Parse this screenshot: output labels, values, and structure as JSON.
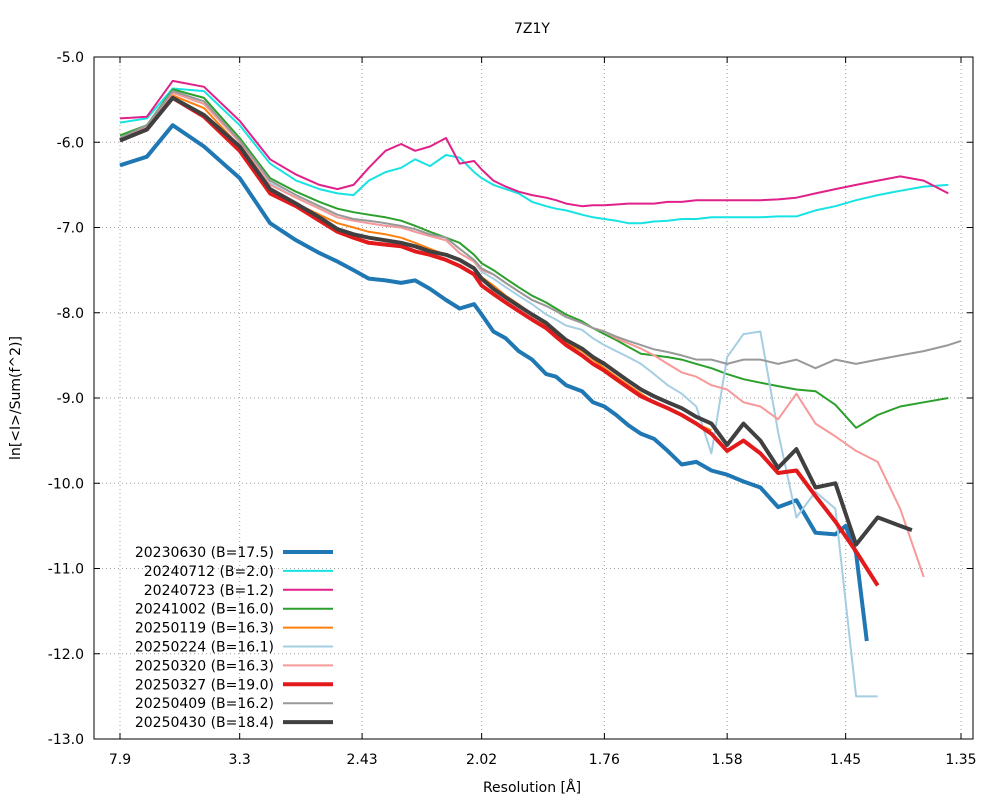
{
  "chart_data": {
    "type": "line",
    "title": "7Z1Y",
    "xlabel": "Resolution [Å]",
    "ylabel": "ln[<I>/Sum(f^2)]",
    "x_scale": "1/d^2",
    "xlim": [
      7.9,
      1.35
    ],
    "ylim": [
      -13.0,
      -5.0
    ],
    "grid": true,
    "legend_position": "bottom-left",
    "x_ticks": [
      {
        "value": 7.9,
        "label": "7.9"
      },
      {
        "value": 3.3,
        "label": "3.3"
      },
      {
        "value": 2.43,
        "label": "2.43"
      },
      {
        "value": 2.02,
        "label": "2.02"
      },
      {
        "value": 1.76,
        "label": "1.76"
      },
      {
        "value": 1.58,
        "label": "1.58"
      },
      {
        "value": 1.45,
        "label": "1.45"
      },
      {
        "value": 1.35,
        "label": "1.35"
      }
    ],
    "y_ticks": [
      {
        "value": -5.0,
        "label": "-5.0"
      },
      {
        "value": -6.0,
        "label": "-6.0"
      },
      {
        "value": -7.0,
        "label": "-7.0"
      },
      {
        "value": -8.0,
        "label": "-8.0"
      },
      {
        "value": -9.0,
        "label": "-9.0"
      },
      {
        "value": -10.0,
        "label": "-10.0"
      },
      {
        "value": -11.0,
        "label": "-11.0"
      },
      {
        "value": -12.0,
        "label": "-12.0"
      },
      {
        "value": -13.0,
        "label": "-13.0"
      }
    ],
    "series": [
      {
        "name": "20230630 (B=17.5)",
        "color": "#1f77b4",
        "width": 4,
        "x": [
          7.9,
          5.5,
          4.5,
          3.8,
          3.3,
          3.0,
          2.8,
          2.65,
          2.55,
          2.47,
          2.4,
          2.33,
          2.27,
          2.22,
          2.17,
          2.12,
          2.08,
          2.04,
          2.02,
          1.99,
          1.96,
          1.93,
          1.9,
          1.87,
          1.85,
          1.83,
          1.8,
          1.78,
          1.76,
          1.74,
          1.72,
          1.7,
          1.68,
          1.66,
          1.64,
          1.62,
          1.6,
          1.58,
          1.56,
          1.54,
          1.52,
          1.5,
          1.48,
          1.46,
          1.45,
          1.44,
          1.43
        ],
        "y": [
          -6.27,
          -6.17,
          -5.8,
          -6.05,
          -6.42,
          -6.95,
          -7.15,
          -7.3,
          -7.4,
          -7.5,
          -7.6,
          -7.62,
          -7.65,
          -7.62,
          -7.72,
          -7.85,
          -7.95,
          -7.9,
          -8.02,
          -8.22,
          -8.3,
          -8.45,
          -8.55,
          -8.72,
          -8.75,
          -8.85,
          -8.92,
          -9.05,
          -9.1,
          -9.2,
          -9.32,
          -9.42,
          -9.48,
          -9.62,
          -9.78,
          -9.75,
          -9.85,
          -9.9,
          -9.98,
          -10.05,
          -10.28,
          -10.2,
          -10.58,
          -10.6,
          -10.5,
          -10.82,
          -11.85
        ]
      },
      {
        "name": "20240712 (B=2.0)",
        "color": "#17e3e3",
        "width": 2,
        "x": [
          7.9,
          5.5,
          4.5,
          3.8,
          3.3,
          3.0,
          2.8,
          2.65,
          2.55,
          2.47,
          2.4,
          2.33,
          2.27,
          2.22,
          2.17,
          2.12,
          2.08,
          2.04,
          2.02,
          1.99,
          1.96,
          1.93,
          1.9,
          1.87,
          1.85,
          1.83,
          1.8,
          1.78,
          1.76,
          1.74,
          1.72,
          1.7,
          1.68,
          1.66,
          1.64,
          1.62,
          1.6,
          1.58,
          1.56,
          1.54,
          1.52,
          1.5,
          1.48,
          1.46,
          1.44,
          1.42,
          1.4,
          1.38,
          1.36
        ],
        "y": [
          -5.77,
          -5.72,
          -5.37,
          -5.4,
          -5.8,
          -6.25,
          -6.45,
          -6.55,
          -6.6,
          -6.62,
          -6.45,
          -6.35,
          -6.3,
          -6.2,
          -6.28,
          -6.15,
          -6.18,
          -6.35,
          -6.42,
          -6.5,
          -6.55,
          -6.6,
          -6.7,
          -6.75,
          -6.78,
          -6.8,
          -6.85,
          -6.88,
          -6.9,
          -6.92,
          -6.95,
          -6.95,
          -6.93,
          -6.92,
          -6.9,
          -6.9,
          -6.88,
          -6.88,
          -6.88,
          -6.88,
          -6.87,
          -6.87,
          -6.8,
          -6.75,
          -6.68,
          -6.62,
          -6.57,
          -6.52,
          -6.5
        ]
      },
      {
        "name": "20240723 (B=1.2)",
        "color": "#e0218a",
        "width": 2,
        "x": [
          7.9,
          5.5,
          4.5,
          3.8,
          3.3,
          3.0,
          2.8,
          2.65,
          2.55,
          2.47,
          2.4,
          2.33,
          2.27,
          2.22,
          2.17,
          2.12,
          2.08,
          2.04,
          2.02,
          1.99,
          1.96,
          1.93,
          1.9,
          1.87,
          1.85,
          1.83,
          1.8,
          1.78,
          1.76,
          1.74,
          1.72,
          1.7,
          1.68,
          1.66,
          1.64,
          1.62,
          1.6,
          1.58,
          1.56,
          1.54,
          1.52,
          1.5,
          1.48,
          1.46,
          1.44,
          1.42,
          1.4,
          1.38,
          1.36
        ],
        "y": [
          -5.72,
          -5.7,
          -5.28,
          -5.35,
          -5.75,
          -6.2,
          -6.38,
          -6.5,
          -6.55,
          -6.5,
          -6.3,
          -6.1,
          -6.02,
          -6.1,
          -6.05,
          -5.95,
          -6.25,
          -6.22,
          -6.32,
          -6.45,
          -6.52,
          -6.58,
          -6.62,
          -6.65,
          -6.68,
          -6.72,
          -6.75,
          -6.74,
          -6.74,
          -6.73,
          -6.72,
          -6.72,
          -6.72,
          -6.7,
          -6.7,
          -6.68,
          -6.68,
          -6.68,
          -6.68,
          -6.68,
          -6.67,
          -6.65,
          -6.6,
          -6.55,
          -6.5,
          -6.45,
          -6.4,
          -6.45,
          -6.6
        ]
      },
      {
        "name": "20241002 (B=16.0)",
        "color": "#2ca02c",
        "width": 2,
        "x": [
          7.9,
          5.5,
          4.5,
          3.8,
          3.3,
          3.0,
          2.8,
          2.65,
          2.55,
          2.47,
          2.4,
          2.33,
          2.27,
          2.22,
          2.17,
          2.12,
          2.08,
          2.04,
          2.02,
          1.99,
          1.96,
          1.93,
          1.9,
          1.87,
          1.85,
          1.83,
          1.8,
          1.78,
          1.76,
          1.74,
          1.72,
          1.7,
          1.68,
          1.66,
          1.64,
          1.62,
          1.6,
          1.58,
          1.56,
          1.54,
          1.52,
          1.5,
          1.48,
          1.46,
          1.44,
          1.42,
          1.4,
          1.38,
          1.36
        ],
        "y": [
          -5.92,
          -5.8,
          -5.38,
          -5.48,
          -5.95,
          -6.42,
          -6.58,
          -6.7,
          -6.78,
          -6.82,
          -6.85,
          -6.88,
          -6.92,
          -6.98,
          -7.05,
          -7.12,
          -7.18,
          -7.32,
          -7.42,
          -7.5,
          -7.6,
          -7.7,
          -7.8,
          -7.88,
          -7.95,
          -8.02,
          -8.1,
          -8.18,
          -8.25,
          -8.32,
          -8.4,
          -8.48,
          -8.5,
          -8.52,
          -8.55,
          -8.6,
          -8.65,
          -8.72,
          -8.78,
          -8.82,
          -8.86,
          -8.9,
          -8.92,
          -9.08,
          -9.35,
          -9.2,
          -9.1,
          -9.05,
          -9.0
        ]
      },
      {
        "name": "20250119 (B=16.3)",
        "color": "#ff7f0e",
        "width": 2,
        "x": [
          7.9,
          5.5,
          4.5,
          3.8,
          3.3,
          3.0,
          2.8,
          2.65,
          2.55,
          2.47,
          2.4,
          2.33,
          2.27,
          2.22,
          2.17,
          2.12,
          2.08,
          2.04,
          2.02,
          1.99,
          1.96,
          1.93,
          1.9,
          1.87,
          1.85,
          1.83,
          1.8,
          1.78,
          1.76,
          1.74,
          1.72,
          1.7,
          1.68,
          1.66,
          1.64,
          1.62,
          1.6
        ],
        "y": [
          -5.95,
          -5.85,
          -5.45,
          -5.6,
          -6.05,
          -6.55,
          -6.72,
          -6.85,
          -6.95,
          -7.0,
          -7.05,
          -7.08,
          -7.12,
          -7.18,
          -7.25,
          -7.32,
          -7.38,
          -7.48,
          -7.58,
          -7.68,
          -7.8,
          -7.9,
          -8.02,
          -8.15,
          -8.25,
          -8.35,
          -8.45,
          -8.55,
          -8.65,
          -8.75,
          -8.85,
          -8.95,
          -9.05,
          -9.12,
          -9.2,
          -9.3,
          -9.38
        ]
      },
      {
        "name": "20250224 (B=16.1)",
        "color": "#a6cee3",
        "width": 2,
        "x": [
          7.9,
          5.5,
          4.5,
          3.8,
          3.3,
          3.0,
          2.8,
          2.65,
          2.55,
          2.47,
          2.4,
          2.33,
          2.27,
          2.22,
          2.17,
          2.12,
          2.08,
          2.04,
          2.02,
          1.99,
          1.96,
          1.93,
          1.9,
          1.87,
          1.85,
          1.83,
          1.8,
          1.78,
          1.76,
          1.74,
          1.72,
          1.7,
          1.68,
          1.66,
          1.64,
          1.62,
          1.6,
          1.58,
          1.56,
          1.54,
          1.52,
          1.5,
          1.48,
          1.46,
          1.44,
          1.43,
          1.42
        ],
        "y": [
          -5.95,
          -5.82,
          -5.4,
          -5.55,
          -6.0,
          -6.48,
          -6.65,
          -6.78,
          -6.88,
          -6.92,
          -6.95,
          -6.98,
          -7.0,
          -7.05,
          -7.1,
          -7.15,
          -7.3,
          -7.4,
          -7.52,
          -7.6,
          -7.7,
          -7.8,
          -7.9,
          -8.02,
          -8.08,
          -8.15,
          -8.2,
          -8.3,
          -8.38,
          -8.45,
          -8.52,
          -8.6,
          -8.72,
          -8.85,
          -8.95,
          -9.1,
          -9.65,
          -8.52,
          -8.25,
          -8.22,
          -9.4,
          -10.4,
          -10.1,
          -10.3,
          -12.5,
          -12.5,
          -12.5
        ]
      },
      {
        "name": "20250320 (B=16.3)",
        "color": "#f79999",
        "width": 2,
        "x": [
          7.9,
          5.5,
          4.5,
          3.8,
          3.3,
          3.0,
          2.8,
          2.65,
          2.55,
          2.47,
          2.4,
          2.33,
          2.27,
          2.22,
          2.17,
          2.12,
          2.08,
          2.04,
          2.02,
          1.99,
          1.96,
          1.93,
          1.9,
          1.87,
          1.85,
          1.83,
          1.8,
          1.78,
          1.76,
          1.74,
          1.72,
          1.7,
          1.68,
          1.66,
          1.64,
          1.62,
          1.6,
          1.58,
          1.56,
          1.54,
          1.52,
          1.5,
          1.48,
          1.46,
          1.44,
          1.42,
          1.4,
          1.38
        ],
        "y": [
          -5.95,
          -5.82,
          -5.42,
          -5.55,
          -6.0,
          -6.5,
          -6.65,
          -6.78,
          -6.88,
          -6.92,
          -6.95,
          -6.98,
          -7.0,
          -7.05,
          -7.1,
          -7.15,
          -7.3,
          -7.4,
          -7.5,
          -7.55,
          -7.65,
          -7.75,
          -7.85,
          -7.92,
          -7.98,
          -8.05,
          -8.12,
          -8.18,
          -8.22,
          -8.3,
          -8.36,
          -8.42,
          -8.5,
          -8.6,
          -8.7,
          -8.75,
          -8.85,
          -8.9,
          -9.05,
          -9.1,
          -9.25,
          -8.95,
          -9.3,
          -9.45,
          -9.62,
          -9.75,
          -10.3,
          -11.1
        ]
      },
      {
        "name": "20250327 (B=19.0)",
        "color": "#e31a1c",
        "width": 4,
        "x": [
          7.9,
          5.5,
          4.5,
          3.8,
          3.3,
          3.0,
          2.8,
          2.65,
          2.55,
          2.47,
          2.4,
          2.33,
          2.27,
          2.22,
          2.17,
          2.12,
          2.08,
          2.04,
          2.02,
          1.99,
          1.96,
          1.93,
          1.9,
          1.87,
          1.85,
          1.83,
          1.8,
          1.78,
          1.76,
          1.74,
          1.72,
          1.7,
          1.68,
          1.66,
          1.64,
          1.62,
          1.6,
          1.58,
          1.56,
          1.54,
          1.52,
          1.5,
          1.48,
          1.46,
          1.44,
          1.42
        ],
        "y": [
          -5.98,
          -5.85,
          -5.48,
          -5.7,
          -6.1,
          -6.6,
          -6.75,
          -6.92,
          -7.05,
          -7.12,
          -7.18,
          -7.2,
          -7.22,
          -7.28,
          -7.32,
          -7.38,
          -7.45,
          -7.55,
          -7.68,
          -7.78,
          -7.88,
          -7.98,
          -8.08,
          -8.18,
          -8.28,
          -8.38,
          -8.5,
          -8.6,
          -8.68,
          -8.78,
          -8.88,
          -8.98,
          -9.05,
          -9.12,
          -9.2,
          -9.3,
          -9.42,
          -9.62,
          -9.5,
          -9.65,
          -9.88,
          -9.85,
          -10.15,
          -10.45,
          -10.8,
          -11.2
        ]
      },
      {
        "name": "20250409 (B=16.2)",
        "color": "#999999",
        "width": 2,
        "x": [
          7.9,
          5.5,
          4.5,
          3.8,
          3.3,
          3.0,
          2.8,
          2.65,
          2.55,
          2.47,
          2.4,
          2.33,
          2.27,
          2.22,
          2.17,
          2.12,
          2.08,
          2.04,
          2.02,
          1.99,
          1.96,
          1.93,
          1.9,
          1.87,
          1.85,
          1.83,
          1.8,
          1.78,
          1.76,
          1.74,
          1.72,
          1.7,
          1.68,
          1.66,
          1.64,
          1.62,
          1.6,
          1.58,
          1.56,
          1.54,
          1.52,
          1.5,
          1.48,
          1.46,
          1.44,
          1.42,
          1.4,
          1.38,
          1.36,
          1.35
        ],
        "y": [
          -5.95,
          -5.8,
          -5.4,
          -5.52,
          -5.98,
          -6.45,
          -6.62,
          -6.75,
          -6.85,
          -6.9,
          -6.92,
          -6.95,
          -6.98,
          -7.02,
          -7.08,
          -7.12,
          -7.25,
          -7.38,
          -7.48,
          -7.55,
          -7.65,
          -7.75,
          -7.85,
          -7.92,
          -7.98,
          -8.05,
          -8.12,
          -8.18,
          -8.22,
          -8.28,
          -8.33,
          -8.38,
          -8.43,
          -8.46,
          -8.5,
          -8.55,
          -8.55,
          -8.6,
          -8.55,
          -8.55,
          -8.6,
          -8.55,
          -8.65,
          -8.55,
          -8.6,
          -8.55,
          -8.5,
          -8.45,
          -8.38,
          -8.33
        ]
      },
      {
        "name": "20250430 (B=18.4)",
        "color": "#404040",
        "width": 4,
        "x": [
          7.9,
          5.5,
          4.5,
          3.8,
          3.3,
          3.0,
          2.8,
          2.65,
          2.55,
          2.47,
          2.4,
          2.33,
          2.27,
          2.22,
          2.17,
          2.12,
          2.08,
          2.04,
          2.02,
          1.99,
          1.96,
          1.93,
          1.9,
          1.87,
          1.85,
          1.83,
          1.8,
          1.78,
          1.76,
          1.74,
          1.72,
          1.7,
          1.68,
          1.66,
          1.64,
          1.62,
          1.6,
          1.58,
          1.56,
          1.54,
          1.52,
          1.5,
          1.48,
          1.46,
          1.44,
          1.42,
          1.4,
          1.39
        ],
        "y": [
          -5.98,
          -5.85,
          -5.48,
          -5.68,
          -6.05,
          -6.55,
          -6.72,
          -6.88,
          -7.02,
          -7.08,
          -7.12,
          -7.15,
          -7.18,
          -7.22,
          -7.28,
          -7.32,
          -7.38,
          -7.48,
          -7.6,
          -7.72,
          -7.82,
          -7.92,
          -8.02,
          -8.12,
          -8.22,
          -8.32,
          -8.42,
          -8.52,
          -8.6,
          -8.7,
          -8.8,
          -8.9,
          -8.98,
          -9.05,
          -9.12,
          -9.22,
          -9.3,
          -9.55,
          -9.3,
          -9.5,
          -9.82,
          -9.6,
          -10.05,
          -10.0,
          -10.72,
          -10.4,
          -10.5,
          -10.55
        ]
      }
    ]
  }
}
